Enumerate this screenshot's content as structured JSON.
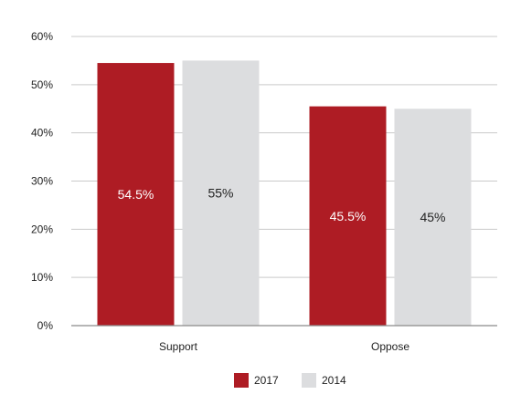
{
  "chart_data": {
    "type": "bar",
    "categories": [
      "Support",
      "Oppose"
    ],
    "series": [
      {
        "name": "2017",
        "values": [
          54.5,
          45.5
        ],
        "labels": [
          "54.5%",
          "45.5%"
        ],
        "color": "#ae1c24",
        "label_color": "#ffffff"
      },
      {
        "name": "2014",
        "values": [
          55,
          45
        ],
        "labels": [
          "55%",
          "45%"
        ],
        "color": "#dcdddf",
        "label_color": "#222222"
      }
    ],
    "y_ticks": [
      "0%",
      "10%",
      "20%",
      "30%",
      "40%",
      "50%",
      "60%"
    ],
    "ylim": [
      0,
      60
    ],
    "grid": true,
    "legend_position": "bottom-center",
    "title": "",
    "xlabel": "",
    "ylabel": ""
  }
}
